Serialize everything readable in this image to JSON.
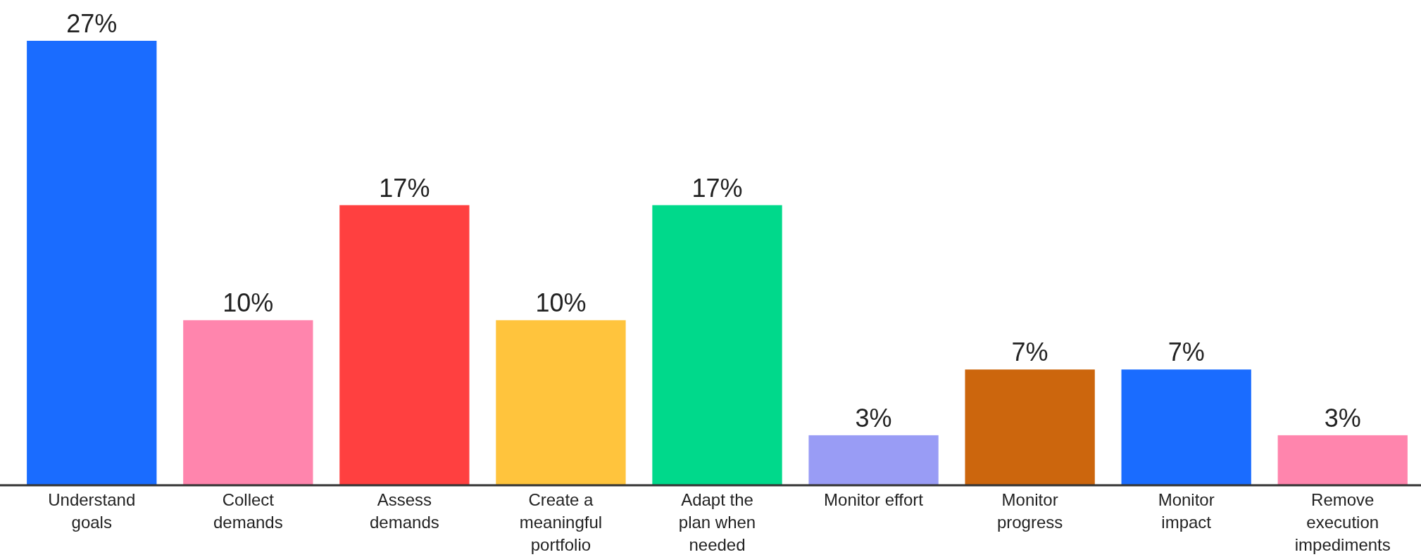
{
  "chart_data": {
    "type": "bar",
    "categories": [
      "Understand\ngoals",
      "Collect\ndemands",
      "Assess\ndemands",
      "Create a\nmeaningful\nportfolio",
      "Adapt the\nplan when\nneeded",
      "Monitor effort",
      "Monitor\nprogress",
      "Monitor\nimpact",
      "Remove\nexecution\nimpediments"
    ],
    "values": [
      27,
      10,
      17,
      10,
      17,
      3,
      7,
      7,
      3
    ],
    "colors": [
      "#1a6cff",
      "#ff85ad",
      "#ff4040",
      "#ffc43d",
      "#00d98b",
      "#999cf5",
      "#cc660d",
      "#1a6cff",
      "#ff85ad"
    ],
    "value_labels": [
      "27%",
      "10%",
      "17%",
      "10%",
      "17%",
      "3%",
      "7%",
      "7%",
      "3%"
    ]
  }
}
